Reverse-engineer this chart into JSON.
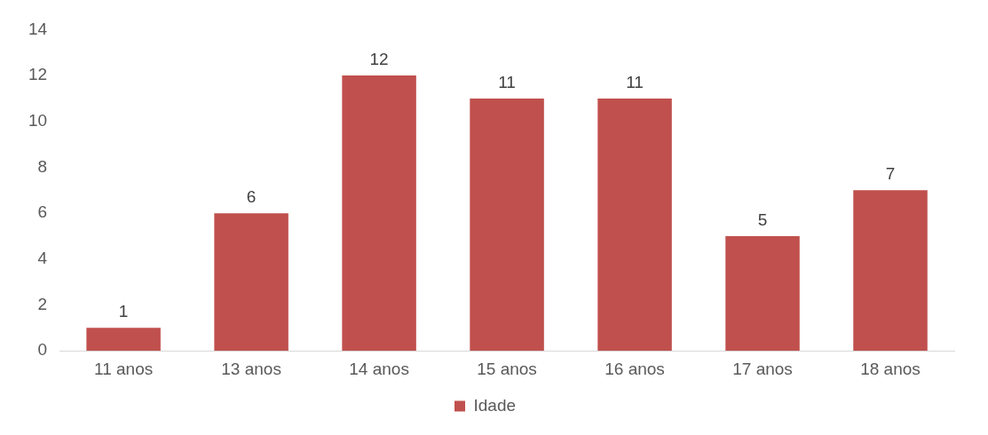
{
  "chart_data": {
    "type": "bar",
    "categories": [
      "11 anos",
      "13 anos",
      "14 anos",
      "15 anos",
      "16 anos",
      "17 anos",
      "18 anos"
    ],
    "series": [
      {
        "name": "Idade",
        "color": "#c0504d",
        "values": [
          1,
          6,
          12,
          11,
          11,
          5,
          7
        ]
      }
    ],
    "ylim": [
      0,
      14
    ],
    "yticks": [
      0,
      2,
      4,
      6,
      8,
      10,
      12,
      14
    ],
    "grid": false,
    "legend": "bottom",
    "data_labels": true
  }
}
